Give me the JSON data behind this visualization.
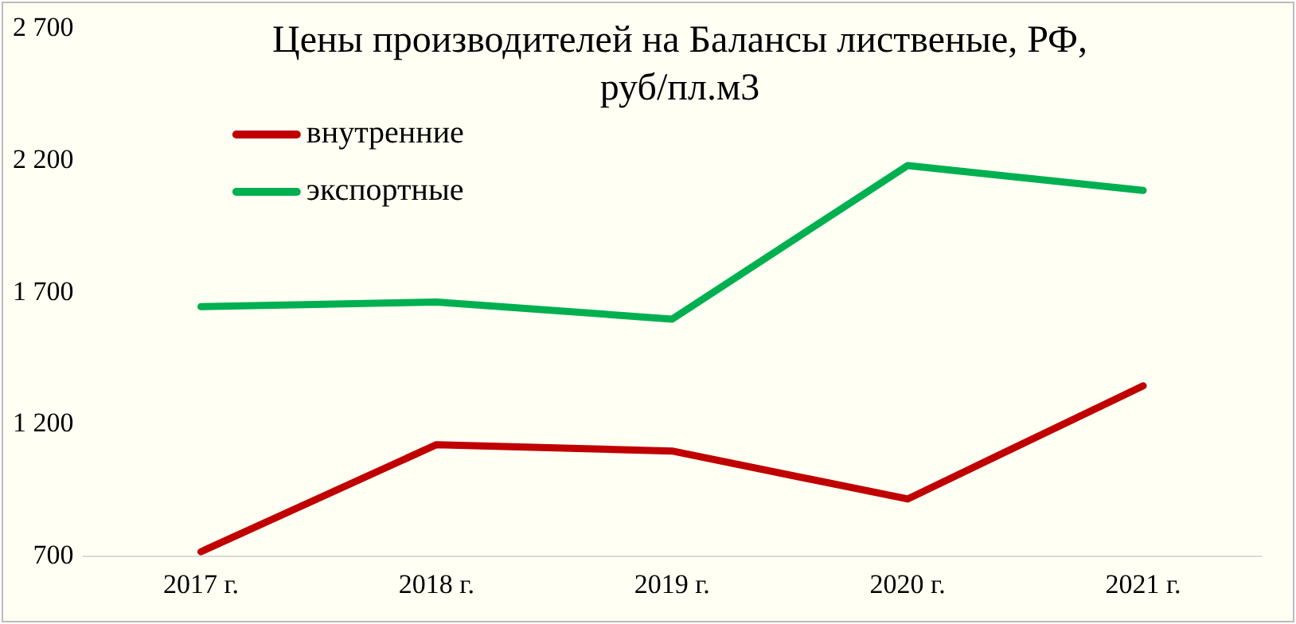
{
  "chart_data": {
    "type": "line",
    "title": "Цены производителей на Балансы лиственые, РФ, руб/пл.м3",
    "categories": [
      "2017 г.",
      "2018 г.",
      "2019 г.",
      "2020 г.",
      "2021 г."
    ],
    "series": [
      {
        "name": "внутренние",
        "color": "#c00000",
        "values": [
          718,
          1124,
          1100,
          918,
          1347
        ]
      },
      {
        "name": "экспортные",
        "color": "#00b050",
        "values": [
          1647,
          1665,
          1600,
          2182,
          2088
        ]
      }
    ],
    "ylim": [
      700,
      2700
    ],
    "yticks": [
      {
        "value": 700,
        "label": "700"
      },
      {
        "value": 1200,
        "label": "1 200"
      },
      {
        "value": 1700,
        "label": "1 700"
      },
      {
        "value": 2200,
        "label": "2 200"
      },
      {
        "value": 2700,
        "label": "2 700"
      }
    ],
    "grid": false,
    "legend": "top left",
    "marker": "none",
    "line_style": "solid"
  }
}
